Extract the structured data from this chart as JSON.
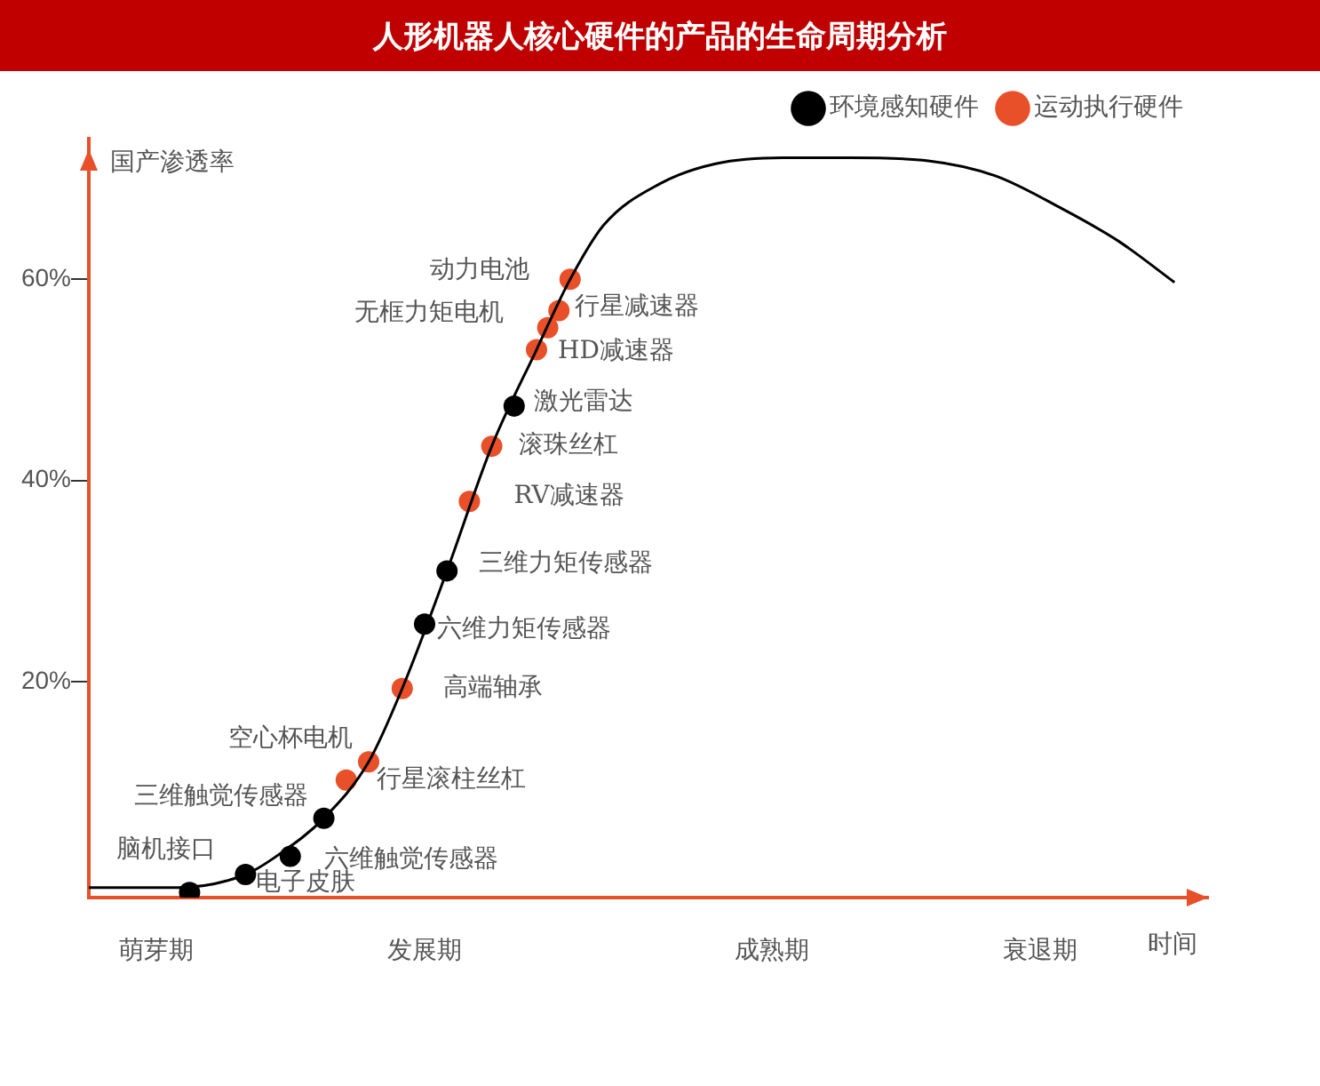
{
  "chart_data": {
    "type": "scatter",
    "title": "人形机器人核心硬件的产品的生命周期分析",
    "ylabel": "国产渗透率",
    "xlabel": "时间",
    "categories": [
      null,
      null,
      null,
      null,
      null,
      null,
      "萌芽期",
      null,
      null,
      null,
      null,
      null,
      null,
      null,
      null,
      null,
      null,
      null,
      null,
      null,
      null,
      null,
      null,
      null,
      null,
      null,
      null,
      null,
      null,
      null,
      "发展期",
      null,
      null,
      null,
      null,
      null,
      null,
      null,
      null,
      null,
      null,
      null,
      null,
      null,
      null,
      null,
      null,
      null,
      null,
      null,
      null,
      null,
      null,
      null,
      null,
      null,
      null,
      null,
      null,
      null,
      null,
      "成熟期",
      null,
      null,
      null,
      null,
      null,
      null,
      null,
      null,
      null,
      null,
      null,
      null,
      null,
      null,
      null,
      null,
      null,
      null,
      null,
      null,
      null,
      null,
      null,
      "衰退期",
      null,
      null,
      null,
      null,
      null,
      null,
      null,
      null,
      null,
      null,
      null,
      null,
      null,
      null,
      null
    ],
    "ylim": [
      -1.5,
      74
    ],
    "yticks": [
      {
        "value": 20,
        "label": "20%"
      },
      {
        "value": 40,
        "label": "40%"
      },
      {
        "value": 60,
        "label": "60%"
      }
    ],
    "grid": false,
    "legend": "top right",
    "marker": "circle",
    "series": [
      {
        "type": "line",
        "color": "#000000",
        "marker": "none",
        "values": [
          -0.5,
          null,
          null,
          null,
          null,
          null,
          null,
          null,
          -0.5,
          null,
          null,
          null,
          null,
          null,
          0.8,
          null,
          null,
          2.8,
          null,
          null,
          null,
          6.4,
          null,
          null,
          null,
          12.0,
          null,
          null,
          19.3,
          null,
          null,
          null,
          31.0,
          null,
          null,
          null,
          43.4,
          null,
          null,
          null,
          53.0,
          null,
          null,
          60.0,
          null,
          null,
          65.4,
          null,
          null,
          null,
          null,
          69.5,
          null,
          null,
          null,
          null,
          71.5,
          null,
          null,
          null,
          null,
          null,
          72.1,
          null,
          null,
          null,
          null,
          null,
          72.1,
          null,
          null,
          null,
          null,
          null,
          null,
          71.8,
          null,
          null,
          null,
          null,
          null,
          70.3,
          null,
          null,
          null,
          null,
          null,
          67.0,
          null,
          null,
          null,
          null,
          63.8,
          null,
          null,
          null,
          null,
          59.7,
          null,
          null,
          null
        ]
      },
      {
        "name": "环境感知硬件",
        "color": "#000000",
        "values": [
          null,
          null,
          null,
          null,
          null,
          null,
          null,
          null,
          null,
          -1.0,
          null,
          null,
          null,
          null,
          0.8,
          null,
          null,
          null,
          2.6,
          null,
          null,
          6.4,
          null,
          null,
          null,
          null,
          null,
          null,
          null,
          null,
          25.7,
          null,
          31.0,
          null,
          null,
          null,
          null,
          null,
          47.4,
          null,
          null,
          null,
          null,
          null,
          null,
          null,
          null,
          null,
          null,
          null,
          null,
          null,
          null,
          null,
          null,
          null,
          null,
          null,
          null,
          null,
          null,
          null,
          null,
          null,
          null,
          null,
          null,
          null,
          null,
          null,
          null,
          null,
          null,
          null,
          null,
          null,
          null,
          null,
          null,
          null,
          null,
          null,
          null,
          null,
          null,
          null,
          null,
          null,
          null,
          null,
          null,
          null,
          null,
          null,
          null,
          null,
          null,
          null,
          null,
          null,
          null
        ]
      },
      {
        "name": "运动执行硬件",
        "color": "#e8502a",
        "values": [
          null,
          null,
          null,
          null,
          null,
          null,
          null,
          null,
          null,
          null,
          null,
          null,
          null,
          null,
          null,
          null,
          null,
          null,
          null,
          null,
          null,
          null,
          null,
          10.2,
          null,
          12.0,
          null,
          null,
          19.3,
          null,
          null,
          null,
          null,
          null,
          37.9,
          null,
          43.4,
          null,
          null,
          null,
          53.0,
          55.2,
          56.9,
          60.0,
          null,
          null,
          null,
          null,
          null,
          null,
          null,
          null,
          null,
          null,
          null,
          null,
          null,
          null,
          null,
          null,
          null,
          null,
          null,
          null,
          null,
          null,
          null,
          null,
          null,
          null,
          null,
          null,
          null,
          null,
          null,
          null,
          null,
          null,
          null,
          null,
          null,
          null,
          null,
          null,
          null,
          null,
          null,
          null,
          null,
          null,
          null,
          null,
          null,
          null,
          null,
          null,
          null,
          null,
          null,
          null,
          null
        ]
      }
    ],
    "annotations": [
      "脑机接口",
      "电子皮肤",
      "六维触觉传感器",
      "三维触觉传感器",
      "行星滚柱丝杠",
      "空心杯电机",
      "高端轴承",
      "六维力矩传感器",
      "三维力矩传感器",
      "RV减速器",
      "滚珠丝杠",
      "激光雷达",
      "HD减速器",
      "无框力矩电机",
      "行星减速器",
      "动力电池"
    ]
  }
}
